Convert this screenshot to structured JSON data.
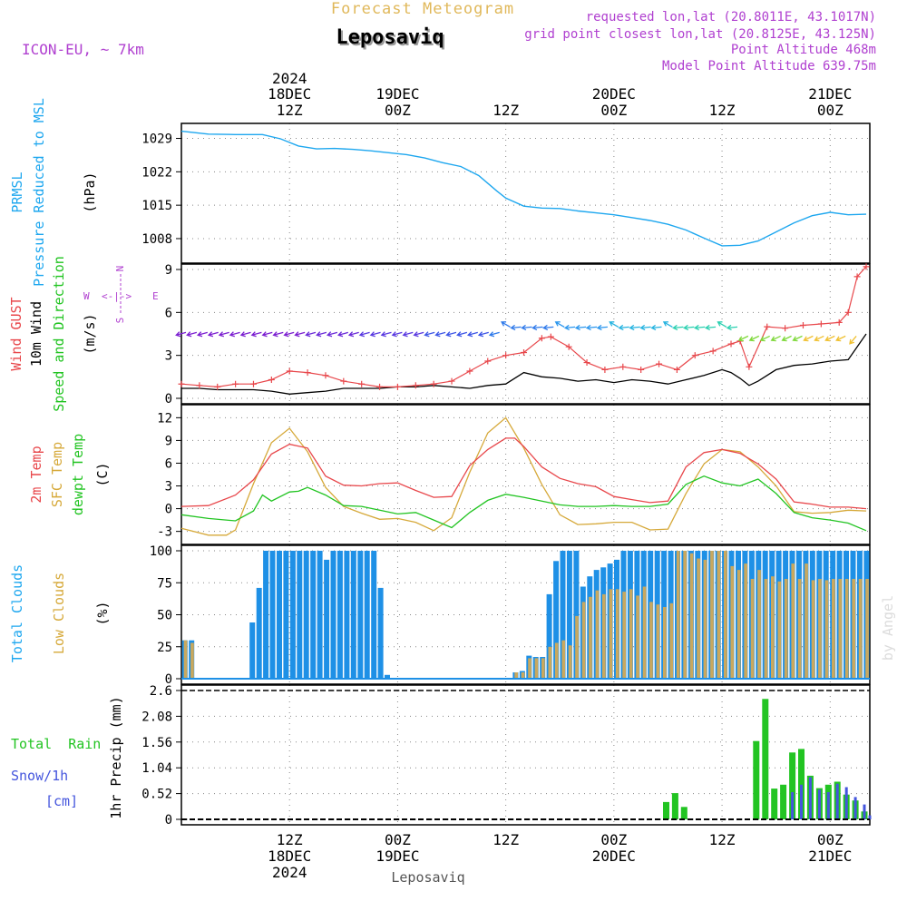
{
  "header": {
    "product": "Forecast Meteogram",
    "location": "Leposaviq",
    "model": "ICON-EU, ~ 7km",
    "requested": "requested lon,lat (20.8011E, 43.1017N)",
    "grid": "grid point closest lon,lat (20.8125E, 43.125N)",
    "point_altitude": "Point Altitude 468m",
    "model_altitude": "Model Point Altitude 639.75m"
  },
  "footer": {
    "location": "Leposaviq",
    "credit": "by Angel"
  },
  "time_axis": {
    "top_year": "2024",
    "bottom_year": "2024",
    "labels": [
      {
        "t": 12,
        "top": [
          "18DEC",
          "12Z"
        ],
        "bottom": [
          "12Z",
          "18DEC"
        ]
      },
      {
        "t": 24,
        "top": [
          "19DEC",
          "00Z"
        ],
        "bottom": [
          "00Z",
          "19DEC"
        ]
      },
      {
        "t": 36,
        "top": [
          "12Z"
        ],
        "bottom": [
          "12Z"
        ]
      },
      {
        "t": 48,
        "top": [
          "20DEC",
          "00Z"
        ],
        "bottom": [
          "00Z",
          "20DEC"
        ]
      },
      {
        "t": 60,
        "top": [
          "12Z"
        ],
        "bottom": [
          "12Z"
        ]
      },
      {
        "t": 72,
        "top": [
          "21DEC",
          "00Z"
        ],
        "bottom": [
          "00Z",
          "21DEC"
        ]
      }
    ]
  },
  "panels": {
    "pressure": {
      "labels": [
        "PRMSL",
        "Pressure Reduced to MSL"
      ],
      "unit": "(hPa)",
      "ticks": [
        "1029",
        "1022",
        "1015",
        "1008"
      ]
    },
    "wind": {
      "labels": [
        "Wind GUST",
        "10m Wind",
        "Speed and Direction"
      ],
      "unit": "(m/s)",
      "ticks": [
        "9",
        "6",
        "3",
        "0"
      ],
      "compass": {
        "n": "N",
        "s": "S",
        "w": "W",
        "e": "E"
      }
    },
    "temp": {
      "labels": [
        "2m Temp",
        "SFC Temp",
        "dewpt Temp"
      ],
      "unit": "(C)",
      "ticks": [
        "12",
        "9",
        "6",
        "3",
        "0",
        "-3"
      ]
    },
    "clouds": {
      "labels": [
        "Total Clouds",
        "Low Clouds"
      ],
      "unit": "(%)",
      "ticks": [
        "100",
        "75",
        "50",
        "25",
        "0"
      ]
    },
    "precip": {
      "labels": [
        "Total  Rain",
        "Snow/1h",
        "[cm]"
      ],
      "unit": "1hr Precip (mm)",
      "ticks": [
        "2.6",
        "2.08",
        "1.56",
        "1.04",
        "0.52",
        "0"
      ]
    }
  },
  "colors": {
    "pressure": "#1ea7ef",
    "gust": "#e8474b",
    "wind": "#000000",
    "temp2m": "#e8474b",
    "sfc": "#d6a93a",
    "dewpt": "#22c422",
    "total_cloud": "#1e90e6",
    "low_cloud": "#c9a85e",
    "rain": "#22c422",
    "snow": "#4455dd",
    "meta": "#b040d0",
    "title_gold": "#e0b85a"
  },
  "chart_data": [
    {
      "type": "line",
      "name": "PRMSL",
      "x_range": [
        0,
        76.4
      ],
      "ylim": [
        1004,
        1031
      ],
      "series": [
        {
          "name": "PRMSL",
          "x": [
            0,
            3,
            6,
            9,
            11,
            13,
            15,
            17,
            19,
            21,
            23,
            25,
            27,
            29,
            31,
            33,
            35,
            36,
            38,
            40,
            42,
            44,
            46,
            48,
            50,
            52,
            54,
            56,
            58,
            60,
            62,
            64,
            66,
            68,
            70,
            72,
            74,
            76
          ],
          "values": [
            1030.5,
            1029.9,
            1029.8,
            1029.8,
            1028.9,
            1027.4,
            1026.8,
            1026.9,
            1026.7,
            1026.4,
            1026.0,
            1025.6,
            1024.9,
            1023.9,
            1023.1,
            1021.2,
            1018.0,
            1016.5,
            1014.8,
            1014.4,
            1014.3,
            1013.8,
            1013.4,
            1013.0,
            1012.4,
            1011.8,
            1011.0,
            1009.8,
            1008.1,
            1006.5,
            1006.6,
            1007.5,
            1009.4,
            1011.3,
            1012.8,
            1013.5,
            1013.0,
            1013.1
          ]
        }
      ]
    },
    {
      "type": "line",
      "name": "Wind",
      "ylim": [
        0,
        9
      ],
      "series": [
        {
          "name": "Wind GUST",
          "x": [
            0,
            2,
            4,
            6,
            8,
            10,
            12,
            14,
            16,
            18,
            20,
            22,
            24,
            26,
            28,
            30,
            32,
            34,
            36,
            38,
            40,
            41,
            43,
            45,
            47,
            49,
            51,
            53,
            55,
            57,
            59,
            61,
            62,
            63,
            65,
            67,
            69,
            71,
            73,
            74,
            75,
            76
          ],
          "values": [
            1.0,
            0.9,
            0.8,
            1.0,
            1.0,
            1.3,
            1.9,
            1.8,
            1.6,
            1.2,
            1.0,
            0.8,
            0.8,
            0.9,
            1.0,
            1.2,
            1.9,
            2.6,
            3.0,
            3.2,
            4.2,
            4.3,
            3.6,
            2.5,
            2.0,
            2.2,
            2.0,
            2.4,
            2.0,
            3.0,
            3.3,
            3.8,
            4.0,
            2.2,
            5.0,
            4.9,
            5.1,
            5.2,
            5.3,
            6.0,
            8.5,
            9.2
          ]
        },
        {
          "name": "10m Wind",
          "x": [
            0,
            2,
            4,
            6,
            8,
            10,
            12,
            14,
            16,
            18,
            20,
            22,
            24,
            26,
            28,
            30,
            32,
            34,
            36,
            38,
            40,
            42,
            44,
            46,
            48,
            50,
            52,
            54,
            56,
            58,
            60,
            61,
            62,
            63,
            64,
            66,
            68,
            70,
            72,
            74,
            76
          ],
          "values": [
            0.7,
            0.7,
            0.6,
            0.6,
            0.6,
            0.5,
            0.3,
            0.4,
            0.5,
            0.7,
            0.7,
            0.7,
            0.8,
            0.8,
            0.9,
            0.8,
            0.7,
            0.9,
            1.0,
            1.8,
            1.5,
            1.4,
            1.2,
            1.3,
            1.1,
            1.3,
            1.2,
            1.0,
            1.3,
            1.6,
            2.0,
            1.8,
            1.4,
            0.9,
            1.2,
            2.0,
            2.3,
            2.4,
            2.6,
            2.7,
            4.5
          ]
        }
      ],
      "arrows": {
        "level": 4.6,
        "direction": "mostly from East (pointing West), veering near end",
        "colors": [
          "#7b1fd0",
          "#7b1fd0",
          "#6a2bd8",
          "#5a3ae0",
          "#3d56e6",
          "#2e79ea",
          "#2a96ee",
          "#25b3e0",
          "#2ad0b0",
          "#7ed83a",
          "#f0c030"
        ]
      }
    },
    {
      "type": "line",
      "name": "Temperature",
      "ylim": [
        -4,
        13
      ],
      "series": [
        {
          "name": "2m Temp",
          "x": [
            0,
            3,
            6,
            8,
            10,
            12,
            14,
            16,
            18,
            20,
            22,
            24,
            26,
            28,
            30,
            32,
            34,
            36,
            37,
            38,
            40,
            42,
            44,
            46,
            48,
            50,
            52,
            54,
            56,
            58,
            60,
            62,
            64,
            66,
            68,
            70,
            72,
            74,
            76
          ],
          "values": [
            0.3,
            0.4,
            1.8,
            3.8,
            7.2,
            8.5,
            8.0,
            4.3,
            3.1,
            3.0,
            3.3,
            3.4,
            2.4,
            1.5,
            1.6,
            5.7,
            7.8,
            9.3,
            9.3,
            8.2,
            5.5,
            4.0,
            3.3,
            2.9,
            1.6,
            1.2,
            0.8,
            1.0,
            5.5,
            7.4,
            7.8,
            7.3,
            5.9,
            3.9,
            0.9,
            0.6,
            0.2,
            0.2,
            0.0
          ]
        },
        {
          "name": "SFC Temp",
          "x": [
            0,
            3,
            5,
            6,
            8,
            10,
            12,
            14,
            16,
            18,
            20,
            22,
            24,
            26,
            28,
            30,
            32,
            34,
            36,
            38,
            40,
            42,
            44,
            46,
            48,
            50,
            52,
            54,
            56,
            58,
            60,
            62,
            64,
            66,
            68,
            70,
            72,
            74,
            76
          ],
          "values": [
            -2.6,
            -3.5,
            -3.5,
            -2.8,
            3.3,
            8.7,
            10.6,
            7.5,
            2.8,
            0.3,
            -0.6,
            -1.4,
            -1.3,
            -1.8,
            -2.9,
            -1.2,
            4.8,
            10.0,
            12.0,
            8.0,
            3.2,
            -0.8,
            -2.1,
            -2.0,
            -1.8,
            -1.8,
            -2.8,
            -2.7,
            2.0,
            5.9,
            7.8,
            7.5,
            5.5,
            3.0,
            -0.4,
            -0.6,
            -0.5,
            -0.2,
            -0.3
          ]
        },
        {
          "name": "dewpt Temp",
          "x": [
            0,
            3,
            6,
            8,
            9,
            10,
            12,
            13,
            14,
            16,
            18,
            20,
            22,
            24,
            26,
            28,
            30,
            32,
            34,
            36,
            38,
            40,
            42,
            44,
            46,
            48,
            50,
            52,
            54,
            56,
            58,
            60,
            62,
            64,
            66,
            68,
            70,
            72,
            74,
            76
          ],
          "values": [
            -0.8,
            -1.3,
            -1.6,
            -0.3,
            1.8,
            1.0,
            2.2,
            2.3,
            2.8,
            1.8,
            0.4,
            0.3,
            -0.2,
            -0.7,
            -0.5,
            -1.5,
            -2.5,
            -0.5,
            1.1,
            1.9,
            1.5,
            1.0,
            0.5,
            0.3,
            0.3,
            0.4,
            0.3,
            0.3,
            0.6,
            3.2,
            4.3,
            3.4,
            3.0,
            3.9,
            2.0,
            -0.5,
            -1.2,
            -1.5,
            -1.9,
            -2.9
          ]
        }
      ]
    },
    {
      "type": "bar",
      "name": "Clouds",
      "ylim": [
        0,
        100
      ],
      "series": [
        {
          "name": "Total Clouds",
          "x_start": 0,
          "step": 1,
          "values": [
            30,
            30,
            0,
            0,
            0,
            0,
            0,
            0,
            0,
            0,
            44,
            71,
            100,
            100,
            100,
            100,
            100,
            100,
            100,
            100,
            100,
            93,
            100,
            100,
            100,
            100,
            100,
            100,
            100,
            71,
            3,
            0,
            0,
            0,
            0,
            0,
            0,
            0,
            0,
            0,
            0,
            0,
            0,
            0,
            0,
            0,
            0,
            0,
            0,
            5,
            6,
            18,
            17,
            17,
            66,
            92,
            100,
            100,
            100,
            72,
            80,
            85,
            87,
            90,
            93,
            100,
            100,
            100,
            100,
            100,
            100,
            100,
            100,
            100,
            100,
            100,
            100,
            100,
            100,
            100,
            100,
            100,
            100,
            100,
            100,
            100,
            100,
            100,
            100,
            100,
            100,
            100,
            100,
            100,
            100,
            100,
            100,
            100,
            100,
            100,
            100,
            100
          ]
        },
        {
          "name": "Low Clouds",
          "x_start": 0,
          "step": 1,
          "values": [
            30,
            28,
            0,
            0,
            0,
            0,
            0,
            0,
            0,
            0,
            0,
            0,
            0,
            0,
            0,
            0,
            0,
            0,
            0,
            0,
            0,
            0,
            0,
            0,
            0,
            0,
            0,
            0,
            0,
            0,
            0,
            0,
            0,
            0,
            0,
            0,
            0,
            0,
            0,
            0,
            0,
            0,
            0,
            0,
            0,
            0,
            0,
            0,
            0,
            5,
            5,
            16,
            16,
            16,
            25,
            28,
            30,
            26,
            49,
            60,
            64,
            69,
            66,
            70,
            70,
            68,
            70,
            65,
            72,
            60,
            58,
            56,
            59,
            100,
            100,
            98,
            94,
            93,
            100,
            100,
            100,
            88,
            85,
            90,
            78,
            85,
            78,
            80,
            76,
            78,
            90,
            78,
            90,
            77,
            78,
            77,
            78,
            78,
            78,
            78,
            78,
            78
          ]
        }
      ]
    },
    {
      "type": "bar",
      "name": "Precipitation",
      "ylim": [
        0,
        2.6
      ],
      "series": [
        {
          "name": "Total Rain",
          "x": [
            53.8,
            54.8,
            55.8,
            63.8,
            64.8,
            65.8,
            66.8,
            67.8,
            68.8,
            69.8,
            70.8,
            71.8,
            72.8,
            73.8,
            74.8,
            75.8
          ],
          "values": [
            0.35,
            0.53,
            0.25,
            1.58,
            2.43,
            0.62,
            0.7,
            1.35,
            1.42,
            0.88,
            0.63,
            0.7,
            0.76,
            0.5,
            0.38,
            0.16
          ]
        },
        {
          "name": "Snow/1h",
          "x": [
            67.8,
            68.8,
            69.8,
            70.8,
            71.8,
            72.8,
            73.8,
            74.8,
            75.8,
            76.4
          ],
          "values": [
            0.55,
            0.7,
            0.85,
            0.6,
            0.55,
            0.72,
            0.65,
            0.45,
            0.3,
            0.08
          ]
        }
      ]
    }
  ]
}
